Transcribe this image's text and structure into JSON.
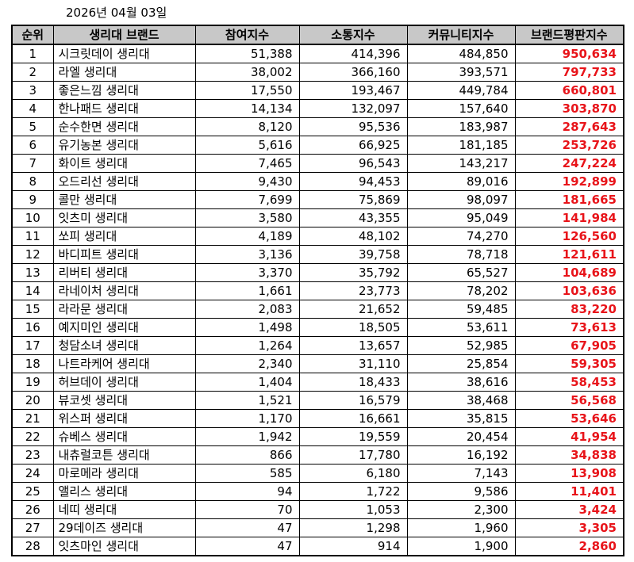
{
  "date": "2026년 04월 03일",
  "colors": {
    "header_bg": "#c8c8c8",
    "index_text": "#e8141a"
  },
  "headers": [
    "순위",
    "생리대 브랜드",
    "참여지수",
    "소통지수",
    "커뮤니티지수",
    "브랜드평판지수"
  ],
  "rows": [
    [
      "1",
      "시크릿데이 생리대",
      "51,388",
      "414,396",
      "484,850",
      "950,634"
    ],
    [
      "2",
      "라엘 생리대",
      "38,002",
      "366,160",
      "393,571",
      "797,733"
    ],
    [
      "3",
      "좋은느낌 생리대",
      "17,550",
      "193,467",
      "449,784",
      "660,801"
    ],
    [
      "4",
      "한나패드 생리대",
      "14,134",
      "132,097",
      "157,640",
      "303,870"
    ],
    [
      "5",
      "순수한면 생리대",
      "8,120",
      "95,536",
      "183,987",
      "287,643"
    ],
    [
      "6",
      "유기농본 생리대",
      "5,616",
      "66,925",
      "181,185",
      "253,726"
    ],
    [
      "7",
      "화이트 생리대",
      "7,465",
      "96,543",
      "143,217",
      "247,224"
    ],
    [
      "8",
      "오드리선 생리대",
      "9,430",
      "94,453",
      "89,016",
      "192,899"
    ],
    [
      "9",
      "콜만 생리대",
      "7,699",
      "75,869",
      "98,097",
      "181,665"
    ],
    [
      "10",
      "잇츠미 생리대",
      "3,580",
      "43,355",
      "95,049",
      "141,984"
    ],
    [
      "11",
      "쏘피 생리대",
      "4,189",
      "48,102",
      "74,270",
      "126,560"
    ],
    [
      "12",
      "바디피트 생리대",
      "3,136",
      "39,758",
      "78,718",
      "121,611"
    ],
    [
      "13",
      "리버티 생리대",
      "3,370",
      "35,792",
      "65,527",
      "104,689"
    ],
    [
      "14",
      "라네이처 생리대",
      "1,661",
      "23,773",
      "78,202",
      "103,636"
    ],
    [
      "15",
      "라라문 생리대",
      "2,083",
      "21,652",
      "59,485",
      "83,220"
    ],
    [
      "16",
      "예지미인 생리대",
      "1,498",
      "18,505",
      "53,611",
      "73,613"
    ],
    [
      "17",
      "청담소녀 생리대",
      "1,264",
      "13,657",
      "52,985",
      "67,905"
    ],
    [
      "18",
      "나트라케어 생리대",
      "2,340",
      "31,110",
      "25,854",
      "59,305"
    ],
    [
      "19",
      "허브데이 생리대",
      "1,404",
      "18,433",
      "38,616",
      "58,453"
    ],
    [
      "20",
      "뷰코셋 생리대",
      "1,521",
      "16,579",
      "38,468",
      "56,568"
    ],
    [
      "21",
      "위스퍼 생리대",
      "1,170",
      "16,661",
      "35,815",
      "53,646"
    ],
    [
      "22",
      "슈베스 생리대",
      "1,942",
      "19,559",
      "20,454",
      "41,954"
    ],
    [
      "23",
      "내츄럴코튼 생리대",
      "866",
      "17,780",
      "16,192",
      "34,838"
    ],
    [
      "24",
      "마로메라 생리대",
      "585",
      "6,180",
      "7,143",
      "13,908"
    ],
    [
      "25",
      "앨리스 생리대",
      "94",
      "1,722",
      "9,586",
      "11,401"
    ],
    [
      "26",
      "네띠 생리대",
      "70",
      "1,053",
      "2,300",
      "3,424"
    ],
    [
      "27",
      "29데이즈 생리대",
      "47",
      "1,298",
      "1,960",
      "3,305"
    ],
    [
      "28",
      "잇츠마인 생리대",
      "47",
      "914",
      "1,900",
      "2,860"
    ]
  ]
}
